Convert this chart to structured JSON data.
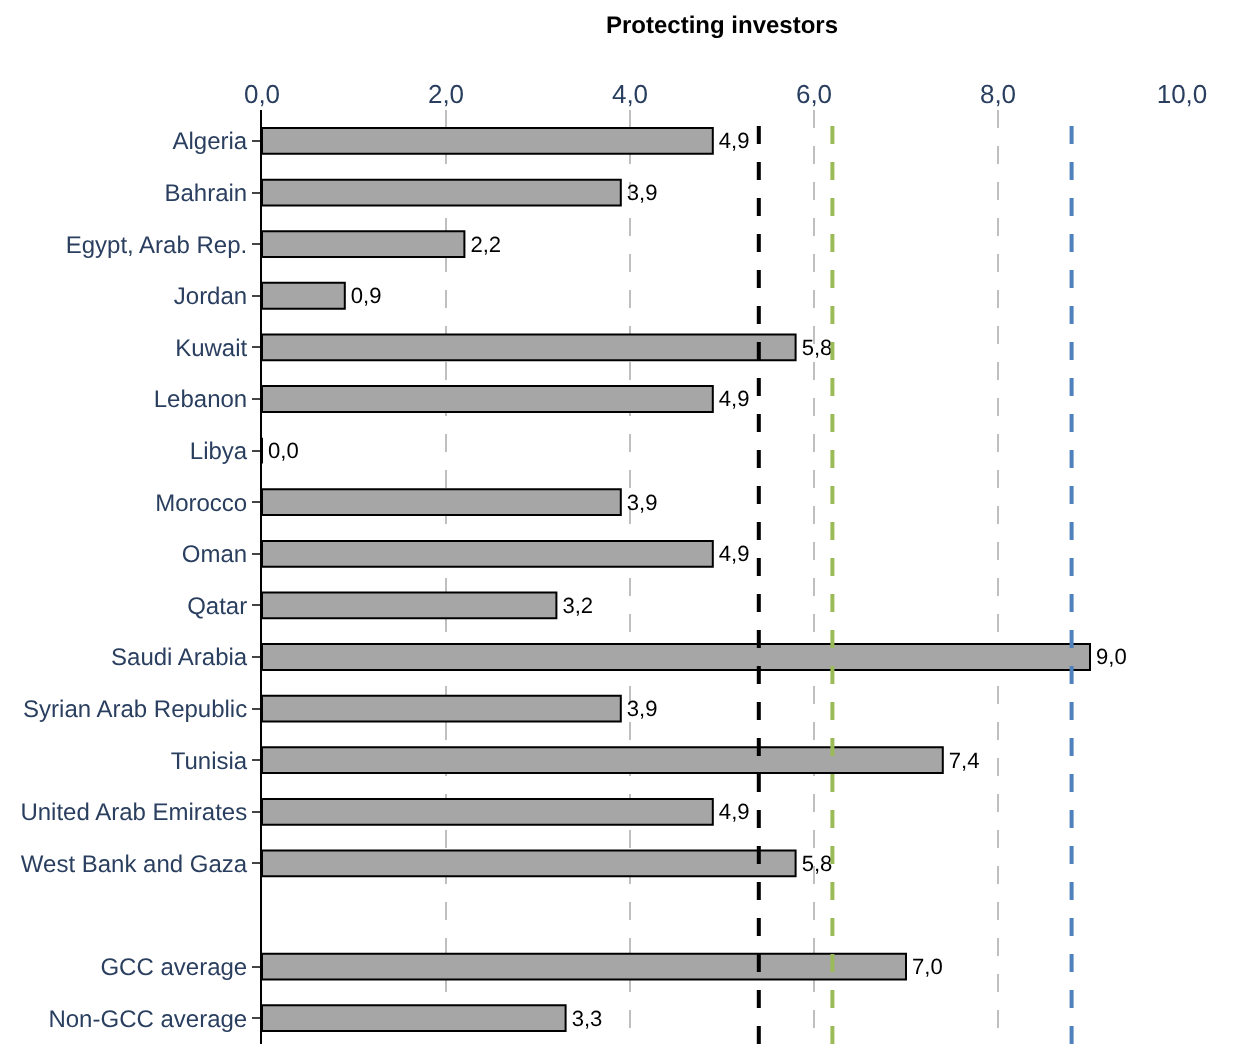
{
  "chart_data": {
    "type": "bar",
    "orientation": "horizontal",
    "title": "Protecting investors",
    "categories": [
      "Algeria",
      "Bahrain",
      "Egypt, Arab Rep.",
      "Jordan",
      "Kuwait",
      "Lebanon",
      "Libya",
      "Morocco",
      "Oman",
      "Qatar",
      "Saudi Arabia",
      "Syrian Arab Republic",
      "Tunisia",
      "United Arab Emirates",
      "West Bank and Gaza",
      null,
      "GCC average",
      "Non-GCC average"
    ],
    "values": [
      4.9,
      3.9,
      2.2,
      0.9,
      5.8,
      4.9,
      0.0,
      3.9,
      4.9,
      3.2,
      9.0,
      3.9,
      7.4,
      4.9,
      5.8,
      null,
      7.0,
      3.3
    ],
    "value_labels": [
      "4,9",
      "3,9",
      "2,2",
      "0,9",
      "5,8",
      "4,9",
      "0,0",
      "3,9",
      "4,9",
      "3,2",
      "9,0",
      "3,9",
      "7,4",
      "4,9",
      "5,8",
      null,
      "7,0",
      "3,3"
    ],
    "color": "#a6a6a6",
    "xlim": [
      0,
      10
    ],
    "xticks": [
      {
        "value": 0,
        "label": "0,0"
      },
      {
        "value": 2,
        "label": "2,0"
      },
      {
        "value": 4,
        "label": "4,0"
      },
      {
        "value": 6,
        "label": "6,0"
      },
      {
        "value": 8,
        "label": "8,0"
      },
      {
        "value": 10,
        "label": "10,0"
      }
    ],
    "grid": "x",
    "ref_lines": [
      {
        "axis": "x",
        "value": 5.4,
        "color": "#000000",
        "line_style": "dashed"
      },
      {
        "axis": "x",
        "value": 6.2,
        "color": "#9bbb59",
        "line_style": "dashed"
      },
      {
        "axis": "x",
        "value": 8.8,
        "color": "#4f81bd",
        "line_style": "dashed"
      }
    ]
  }
}
